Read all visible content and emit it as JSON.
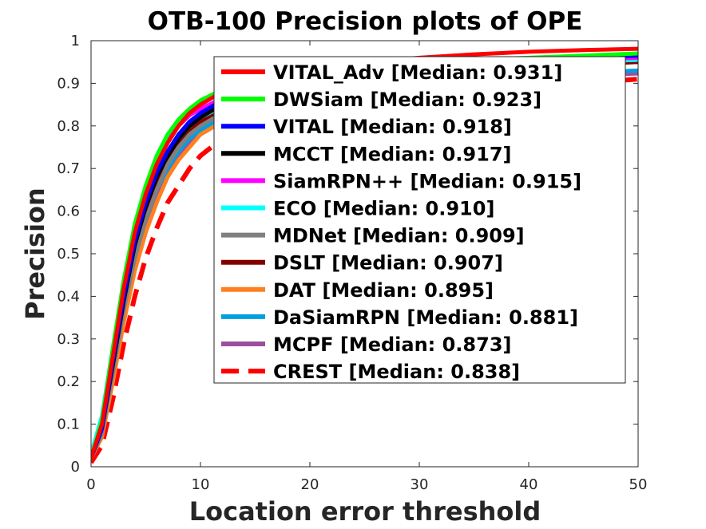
{
  "chart_data": {
    "type": "line",
    "title": "OTB-100  Precision plots of OPE",
    "xlabel": "Location error threshold",
    "ylabel": "Precision",
    "xlim": [
      0,
      50
    ],
    "ylim": [
      0,
      1
    ],
    "x_ticks": [
      "0",
      "10",
      "20",
      "30",
      "40",
      "50"
    ],
    "y_ticks": [
      "0",
      "0.1",
      "0.2",
      "0.3",
      "0.4",
      "0.5",
      "0.6",
      "0.7",
      "0.8",
      "0.9",
      "1"
    ],
    "grid": false,
    "legend_position": "top-right",
    "x": [
      0,
      1,
      2,
      3,
      4,
      5,
      6,
      7,
      8,
      9,
      10,
      12,
      14,
      16,
      18,
      20,
      22,
      25,
      30,
      35,
      40,
      45,
      50
    ],
    "series": [
      {
        "name": "VITAL_Adv [Median: 0.931]",
        "color": "#ff0000",
        "dash": "solid",
        "values": [
          0.02,
          0.1,
          0.26,
          0.42,
          0.55,
          0.64,
          0.71,
          0.76,
          0.8,
          0.83,
          0.85,
          0.88,
          0.9,
          0.915,
          0.925,
          0.935,
          0.94,
          0.95,
          0.96,
          0.968,
          0.974,
          0.978,
          0.981
        ]
      },
      {
        "name": "DWSiam [Median: 0.923]",
        "color": "#00ff00",
        "dash": "solid",
        "values": [
          0.02,
          0.11,
          0.28,
          0.44,
          0.57,
          0.66,
          0.73,
          0.78,
          0.815,
          0.84,
          0.86,
          0.885,
          0.9,
          0.912,
          0.92,
          0.925,
          0.93,
          0.94,
          0.948,
          0.955,
          0.96,
          0.965,
          0.97
        ]
      },
      {
        "name": "VITAL [Median: 0.918]",
        "color": "#0000ff",
        "dash": "solid",
        "values": [
          0.02,
          0.09,
          0.25,
          0.4,
          0.53,
          0.62,
          0.69,
          0.74,
          0.78,
          0.81,
          0.83,
          0.86,
          0.88,
          0.895,
          0.905,
          0.915,
          0.92,
          0.93,
          0.94,
          0.948,
          0.955,
          0.96,
          0.965
        ]
      },
      {
        "name": "MCCT [Median: 0.917]",
        "color": "#000000",
        "dash": "solid",
        "values": [
          0.02,
          0.09,
          0.24,
          0.39,
          0.52,
          0.61,
          0.68,
          0.73,
          0.77,
          0.8,
          0.82,
          0.85,
          0.875,
          0.89,
          0.9,
          0.91,
          0.918,
          0.928,
          0.94,
          0.948,
          0.955,
          0.96,
          0.965
        ]
      },
      {
        "name": "SiamRPN++ [Median: 0.915]",
        "color": "#ff00ff",
        "dash": "solid",
        "values": [
          0.02,
          0.1,
          0.27,
          0.43,
          0.56,
          0.65,
          0.72,
          0.77,
          0.8,
          0.825,
          0.84,
          0.865,
          0.88,
          0.893,
          0.9,
          0.91,
          0.915,
          0.925,
          0.935,
          0.943,
          0.95,
          0.955,
          0.96
        ]
      },
      {
        "name": "ECO [Median: 0.910]",
        "color": "#00ffff",
        "dash": "solid",
        "values": [
          0.03,
          0.12,
          0.28,
          0.43,
          0.55,
          0.63,
          0.69,
          0.74,
          0.77,
          0.8,
          0.82,
          0.845,
          0.865,
          0.88,
          0.89,
          0.9,
          0.908,
          0.918,
          0.93,
          0.938,
          0.945,
          0.95,
          0.955
        ]
      },
      {
        "name": "MDNet [Median: 0.909]",
        "color": "#808080",
        "dash": "solid",
        "values": [
          0.02,
          0.08,
          0.22,
          0.37,
          0.49,
          0.58,
          0.65,
          0.71,
          0.75,
          0.78,
          0.8,
          0.83,
          0.855,
          0.87,
          0.885,
          0.895,
          0.905,
          0.915,
          0.93,
          0.938,
          0.945,
          0.95,
          0.955
        ]
      },
      {
        "name": "DSLT [Median: 0.907]",
        "color": "#800000",
        "dash": "solid",
        "values": [
          0.02,
          0.08,
          0.23,
          0.38,
          0.5,
          0.59,
          0.66,
          0.72,
          0.76,
          0.79,
          0.81,
          0.84,
          0.86,
          0.875,
          0.885,
          0.895,
          0.903,
          0.913,
          0.925,
          0.933,
          0.94,
          0.945,
          0.95
        ]
      },
      {
        "name": "DAT [Median: 0.895]",
        "color": "#ff8020",
        "dash": "solid",
        "values": [
          0.02,
          0.07,
          0.2,
          0.34,
          0.46,
          0.55,
          0.62,
          0.68,
          0.72,
          0.75,
          0.78,
          0.81,
          0.835,
          0.855,
          0.87,
          0.88,
          0.89,
          0.9,
          0.915,
          0.925,
          0.935,
          0.943,
          0.95
        ]
      },
      {
        "name": "DaSiamRPN [Median: 0.881]",
        "color": "#00a0e0",
        "dash": "solid",
        "values": [
          0.02,
          0.09,
          0.24,
          0.38,
          0.5,
          0.58,
          0.65,
          0.7,
          0.74,
          0.77,
          0.79,
          0.82,
          0.84,
          0.855,
          0.865,
          0.875,
          0.882,
          0.892,
          0.905,
          0.913,
          0.92,
          0.925,
          0.93
        ]
      },
      {
        "name": "MCPF [Median: 0.873]",
        "color": "#9b4fa0",
        "dash": "solid",
        "values": [
          0.02,
          0.08,
          0.22,
          0.36,
          0.48,
          0.57,
          0.64,
          0.69,
          0.73,
          0.76,
          0.78,
          0.81,
          0.83,
          0.845,
          0.855,
          0.865,
          0.873,
          0.883,
          0.895,
          0.905,
          0.912,
          0.918,
          0.923
        ]
      },
      {
        "name": "CREST [Median: 0.838]",
        "color": "#ff0000",
        "dash": "dashed",
        "values": [
          0.01,
          0.05,
          0.16,
          0.29,
          0.4,
          0.49,
          0.56,
          0.62,
          0.66,
          0.7,
          0.73,
          0.77,
          0.79,
          0.805,
          0.815,
          0.825,
          0.835,
          0.848,
          0.862,
          0.875,
          0.888,
          0.9,
          0.91
        ]
      }
    ]
  }
}
